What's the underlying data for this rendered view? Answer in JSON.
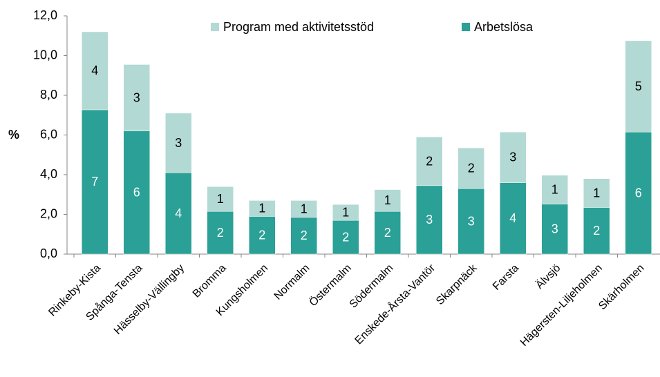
{
  "chart_data": {
    "type": "stacked_bar",
    "ylabel": "%",
    "categories": [
      "Rinkeby-Kista",
      "Spånga-Tensta",
      "Hässelby-Vällingby",
      "Bromma",
      "Kungsholmen",
      "Normalm",
      "Östermalm",
      "Södermalm",
      "Enskede-Årsta-Vantör",
      "Skarpnäck",
      "Farsta",
      "Älvsjö",
      "Hägersten-Liljeholmen",
      "Skärholmen"
    ],
    "series": [
      {
        "name": "Arbetslösa",
        "color": "#2aa096",
        "values": [
          7.27,
          6.2,
          4.1,
          2.15,
          1.9,
          1.85,
          1.7,
          2.15,
          3.45,
          3.3,
          3.6,
          2.52,
          2.35,
          6.15
        ],
        "value_labels": [
          "7",
          "6",
          "4",
          "2",
          "2",
          "2",
          "2",
          "2",
          "3",
          "3",
          "4",
          "3",
          "2",
          "6"
        ]
      },
      {
        "name": "Program med aktivitetsstöd",
        "color": "#b3d9d4",
        "values": [
          3.93,
          3.35,
          3.0,
          1.25,
          0.8,
          0.85,
          0.8,
          1.1,
          2.45,
          2.05,
          2.55,
          1.45,
          1.45,
          4.6
        ],
        "value_labels": [
          "4",
          "3",
          "3",
          "1",
          "1",
          "1",
          "1",
          "1",
          "2",
          "2",
          "3",
          "1",
          "1",
          "5"
        ]
      }
    ],
    "ylim": [
      0,
      12
    ],
    "yticks": [
      {
        "value": 0,
        "label": "0,0"
      },
      {
        "value": 2,
        "label": "2,0"
      },
      {
        "value": 4,
        "label": "4,0"
      },
      {
        "value": 6,
        "label": "6,0"
      },
      {
        "value": 8,
        "label": "8,0"
      },
      {
        "value": 10,
        "label": "10,0"
      },
      {
        "value": 12,
        "label": "12,0"
      }
    ],
    "legend": "top"
  }
}
